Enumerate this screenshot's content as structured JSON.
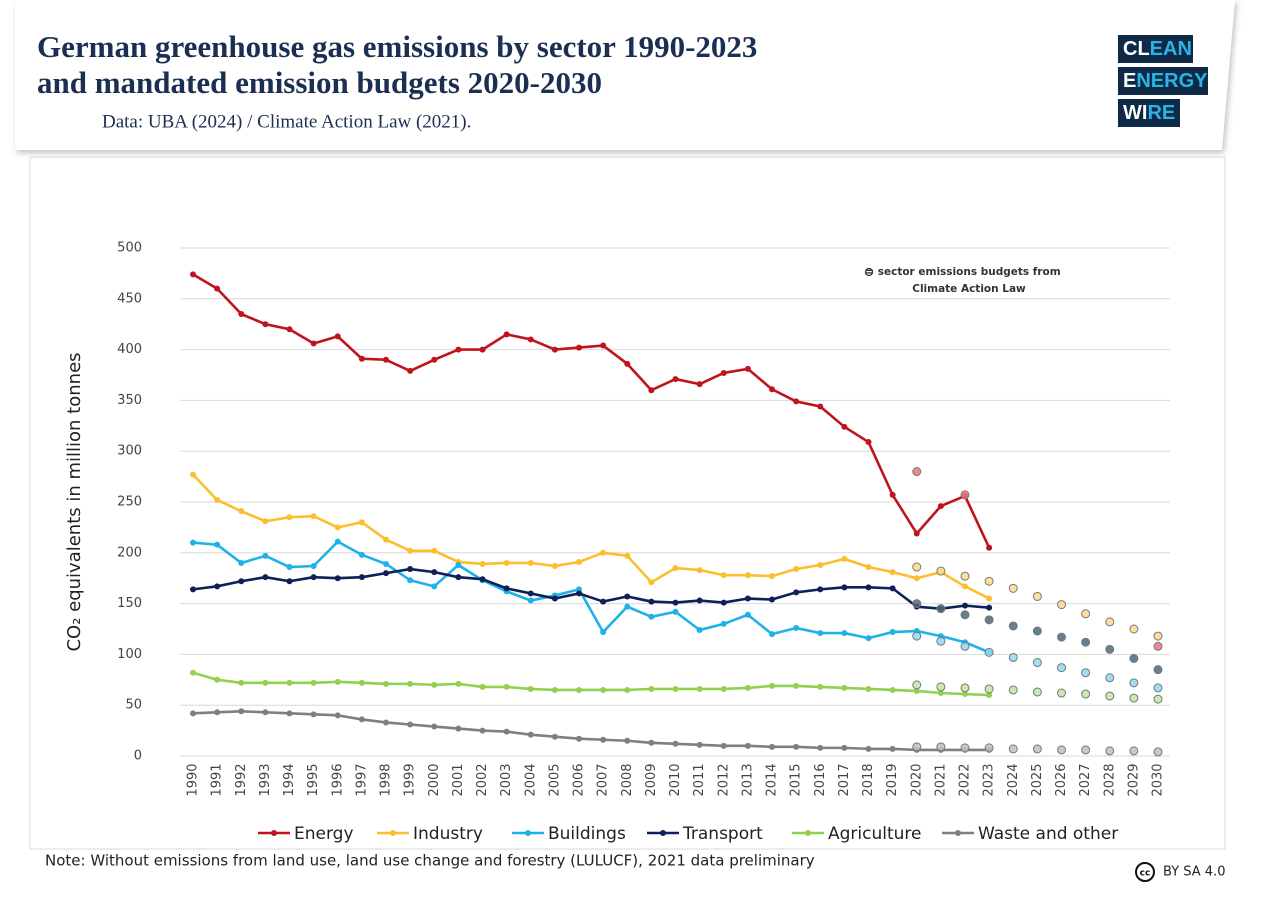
{
  "header": {
    "title": [
      "German greenhouse gas emissions by sector 1990-2023",
      "and mandated emission budgets 2020-2030"
    ],
    "subtitle": "Data: UBA (2024) / Climate Action Law (2021).",
    "logo": [
      [
        "CL",
        "EAN"
      ],
      [
        "E",
        "NERGY"
      ],
      [
        "WI",
        "RE"
      ]
    ]
  },
  "chart_data": {
    "type": "line",
    "ylabel": "CO₂ equivalents in million tonnes",
    "annotation": [
      "= sector emissions budgets from",
      "Climate Action Law"
    ],
    "x": [
      1990,
      1991,
      1992,
      1993,
      1994,
      1995,
      1996,
      1997,
      1998,
      1999,
      2000,
      2001,
      2002,
      2003,
      2004,
      2005,
      2006,
      2007,
      2008,
      2009,
      2010,
      2011,
      2012,
      2013,
      2014,
      2015,
      2016,
      2017,
      2018,
      2019,
      2020,
      2021,
      2022,
      2023,
      2024,
      2025,
      2026,
      2027,
      2028,
      2029,
      2030
    ],
    "xlim": [
      1990,
      2030
    ],
    "ylim": [
      0,
      500
    ],
    "yticks": [
      0,
      50,
      100,
      150,
      200,
      250,
      300,
      350,
      400,
      450,
      500
    ],
    "grid": true,
    "series": [
      {
        "name": "Energy",
        "color": "#c0141c",
        "values": [
          474,
          460,
          435,
          425,
          420,
          406,
          413,
          391,
          390,
          379,
          390,
          400,
          400,
          415,
          410,
          400,
          402,
          404,
          386,
          360,
          371,
          366,
          377,
          381,
          361,
          349,
          344,
          324,
          309,
          257,
          219,
          246,
          256,
          205,
          null,
          null,
          null,
          null,
          null,
          null,
          null
        ]
      },
      {
        "name": "Industry",
        "color": "#fbbf2e",
        "values": [
          277,
          252,
          241,
          231,
          235,
          236,
          225,
          230,
          213,
          202,
          202,
          191,
          189,
          190,
          190,
          187,
          191,
          200,
          197,
          171,
          185,
          183,
          178,
          178,
          177,
          184,
          188,
          194,
          186,
          181,
          175,
          181,
          167,
          155,
          null,
          null,
          null,
          null,
          null,
          null,
          null
        ]
      },
      {
        "name": "Buildings",
        "color": "#1fb1e8",
        "values": [
          210,
          208,
          190,
          197,
          186,
          187,
          211,
          198,
          189,
          173,
          167,
          188,
          173,
          162,
          153,
          158,
          164,
          122,
          147,
          137,
          142,
          124,
          130,
          139,
          120,
          126,
          121,
          121,
          116,
          122,
          123,
          118,
          112,
          102,
          null,
          null,
          null,
          null,
          null,
          null,
          null
        ]
      },
      {
        "name": "Transport",
        "color": "#0d2157",
        "values": [
          164,
          167,
          172,
          176,
          172,
          176,
          175,
          176,
          180,
          184,
          181,
          176,
          174,
          165,
          160,
          155,
          160,
          152,
          157,
          152,
          151,
          153,
          151,
          155,
          154,
          161,
          164,
          166,
          166,
          165,
          147,
          145,
          148,
          146,
          null,
          null,
          null,
          null,
          null,
          null,
          null
        ]
      },
      {
        "name": "Agriculture",
        "color": "#92d050",
        "values": [
          82,
          75,
          72,
          72,
          72,
          72,
          73,
          72,
          71,
          71,
          70,
          71,
          68,
          68,
          66,
          65,
          65,
          65,
          65,
          66,
          66,
          66,
          66,
          67,
          69,
          69,
          68,
          67,
          66,
          65,
          64,
          62,
          61,
          60,
          null,
          null,
          null,
          null,
          null,
          null,
          null
        ]
      },
      {
        "name": "Waste and other",
        "color": "#7f7f7f",
        "values": [
          42,
          43,
          44,
          43,
          42,
          41,
          40,
          36,
          33,
          31,
          29,
          27,
          25,
          24,
          21,
          19,
          17,
          16,
          15,
          13,
          12,
          11,
          10,
          10,
          9,
          9,
          8,
          8,
          7,
          7,
          6,
          6,
          6,
          6,
          null,
          null,
          null,
          null,
          null,
          null,
          null
        ]
      }
    ],
    "budgets": [
      {
        "color": "#e5767b",
        "values": [
          null,
          null,
          null,
          null,
          null,
          null,
          null,
          null,
          null,
          null,
          null,
          null,
          null,
          null,
          null,
          null,
          null,
          null,
          null,
          null,
          null,
          null,
          null,
          null,
          null,
          null,
          null,
          null,
          null,
          null,
          280,
          null,
          257,
          null,
          null,
          null,
          null,
          null,
          null,
          null,
          108
        ]
      },
      {
        "color": "#fdd98a",
        "values": [
          null,
          null,
          null,
          null,
          null,
          null,
          null,
          null,
          null,
          null,
          null,
          null,
          null,
          null,
          null,
          null,
          null,
          null,
          null,
          null,
          null,
          null,
          null,
          null,
          null,
          null,
          null,
          null,
          null,
          null,
          186,
          182,
          177,
          172,
          165,
          157,
          149,
          140,
          132,
          125,
          118
        ]
      },
      {
        "color": "#8fd8f3",
        "values": [
          null,
          null,
          null,
          null,
          null,
          null,
          null,
          null,
          null,
          null,
          null,
          null,
          null,
          null,
          null,
          null,
          null,
          null,
          null,
          null,
          null,
          null,
          null,
          null,
          null,
          null,
          null,
          null,
          null,
          null,
          118,
          113,
          108,
          102,
          97,
          92,
          87,
          82,
          77,
          72,
          67
        ]
      },
      {
        "color": "#4d6a7a",
        "values": [
          null,
          null,
          null,
          null,
          null,
          null,
          null,
          null,
          null,
          null,
          null,
          null,
          null,
          null,
          null,
          null,
          null,
          null,
          null,
          null,
          null,
          null,
          null,
          null,
          null,
          null,
          null,
          null,
          null,
          null,
          150,
          145,
          139,
          134,
          128,
          123,
          117,
          112,
          105,
          96,
          85
        ]
      },
      {
        "color": "#bfe69e",
        "values": [
          null,
          null,
          null,
          null,
          null,
          null,
          null,
          null,
          null,
          null,
          null,
          null,
          null,
          null,
          null,
          null,
          null,
          null,
          null,
          null,
          null,
          null,
          null,
          null,
          null,
          null,
          null,
          null,
          null,
          null,
          70,
          68,
          67,
          66,
          65,
          63,
          62,
          61,
          59,
          57,
          56
        ]
      },
      {
        "color": "#bfbfbf",
        "values": [
          null,
          null,
          null,
          null,
          null,
          null,
          null,
          null,
          null,
          null,
          null,
          null,
          null,
          null,
          null,
          null,
          null,
          null,
          null,
          null,
          null,
          null,
          null,
          null,
          null,
          null,
          null,
          null,
          null,
          null,
          9,
          9,
          8,
          8,
          7,
          7,
          6,
          6,
          5,
          5,
          4
        ]
      }
    ],
    "note": "Note: Without emissions from land use, land use change and forestry (LULUCF), 2021 data preliminary",
    "license": "BY SA 4.0"
  }
}
